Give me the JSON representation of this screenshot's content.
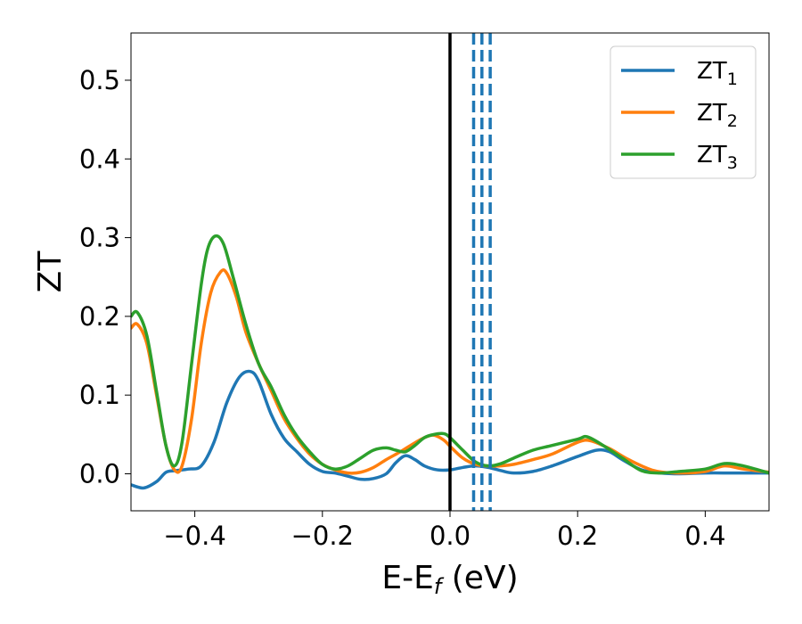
{
  "chart_data": {
    "type": "line",
    "title": "",
    "xlabel": "E-E",
    "xlabel_subscript": "f",
    "xlabel_unit": " (eV)",
    "ylabel": "ZT",
    "xlim": [
      -0.5,
      0.5
    ],
    "ylim": [
      -0.047,
      0.56
    ],
    "xticks": [
      -0.4,
      -0.2,
      0.0,
      0.2,
      0.4
    ],
    "xtick_labels": [
      "−0.4",
      "−0.2",
      "0.0",
      "0.2",
      "0.4"
    ],
    "yticks": [
      0.0,
      0.1,
      0.2,
      0.3,
      0.4,
      0.5
    ],
    "ytick_labels": [
      "0.0",
      "0.1",
      "0.2",
      "0.3",
      "0.4",
      "0.5"
    ],
    "grid": false,
    "legend_position": "top-right",
    "series": [
      {
        "name": "ZT",
        "name_subscript": "1",
        "color": "#1f77b4",
        "x": [
          -0.5,
          -0.48,
          -0.46,
          -0.445,
          -0.43,
          -0.41,
          -0.39,
          -0.37,
          -0.35,
          -0.33,
          -0.313,
          -0.3,
          -0.28,
          -0.26,
          -0.24,
          -0.22,
          -0.2,
          -0.18,
          -0.16,
          -0.14,
          -0.12,
          -0.1,
          -0.085,
          -0.07,
          -0.055,
          -0.04,
          -0.02,
          0.0,
          0.02,
          0.04,
          0.06,
          0.08,
          0.1,
          0.13,
          0.16,
          0.2,
          0.23,
          0.25,
          0.27,
          0.3,
          0.33,
          0.36,
          0.4,
          0.44,
          0.47,
          0.5
        ],
        "y": [
          -0.014,
          -0.018,
          -0.01,
          0.002,
          0.004,
          0.006,
          0.01,
          0.04,
          0.09,
          0.123,
          0.13,
          0.118,
          0.075,
          0.045,
          0.028,
          0.012,
          0.003,
          0.001,
          -0.003,
          -0.007,
          -0.006,
          0.0,
          0.014,
          0.023,
          0.018,
          0.01,
          0.005,
          0.005,
          0.008,
          0.01,
          0.008,
          0.004,
          0.001,
          0.003,
          0.01,
          0.022,
          0.03,
          0.028,
          0.018,
          0.005,
          0.001,
          0.0,
          0.001,
          0.001,
          0.001,
          0.001
        ]
      },
      {
        "name": "ZT",
        "name_subscript": "2",
        "color": "#ff7f0e",
        "x": [
          -0.5,
          -0.49,
          -0.475,
          -0.46,
          -0.445,
          -0.432,
          -0.42,
          -0.405,
          -0.39,
          -0.375,
          -0.36,
          -0.35,
          -0.335,
          -0.32,
          -0.3,
          -0.28,
          -0.26,
          -0.24,
          -0.22,
          -0.2,
          -0.18,
          -0.16,
          -0.14,
          -0.12,
          -0.1,
          -0.08,
          -0.06,
          -0.04,
          -0.025,
          -0.01,
          0.0,
          0.02,
          0.04,
          0.06,
          0.08,
          0.1,
          0.13,
          0.16,
          0.2,
          0.22,
          0.25,
          0.28,
          0.32,
          0.36,
          0.4,
          0.43,
          0.46,
          0.5
        ],
        "y": [
          0.185,
          0.19,
          0.165,
          0.1,
          0.035,
          0.005,
          0.01,
          0.07,
          0.165,
          0.23,
          0.256,
          0.255,
          0.225,
          0.18,
          0.14,
          0.105,
          0.07,
          0.045,
          0.025,
          0.012,
          0.005,
          0.001,
          0.002,
          0.008,
          0.018,
          0.027,
          0.037,
          0.046,
          0.049,
          0.043,
          0.035,
          0.02,
          0.012,
          0.01,
          0.01,
          0.012,
          0.018,
          0.025,
          0.04,
          0.042,
          0.032,
          0.018,
          0.004,
          0.001,
          0.003,
          0.01,
          0.006,
          0.002
        ]
      },
      {
        "name": "ZT",
        "name_subscript": "3",
        "color": "#2ca02c",
        "x": [
          -0.5,
          -0.49,
          -0.475,
          -0.46,
          -0.445,
          -0.432,
          -0.42,
          -0.405,
          -0.39,
          -0.38,
          -0.368,
          -0.355,
          -0.34,
          -0.32,
          -0.3,
          -0.28,
          -0.26,
          -0.24,
          -0.22,
          -0.2,
          -0.18,
          -0.16,
          -0.14,
          -0.12,
          -0.1,
          -0.085,
          -0.07,
          -0.055,
          -0.04,
          -0.025,
          -0.01,
          0.0,
          0.02,
          0.04,
          0.06,
          0.08,
          0.1,
          0.13,
          0.16,
          0.2,
          0.215,
          0.24,
          0.27,
          0.3,
          0.33,
          0.36,
          0.4,
          0.43,
          0.46,
          0.5
        ],
        "y": [
          0.2,
          0.205,
          0.175,
          0.105,
          0.035,
          0.01,
          0.04,
          0.14,
          0.24,
          0.285,
          0.302,
          0.292,
          0.25,
          0.19,
          0.14,
          0.11,
          0.075,
          0.048,
          0.028,
          0.012,
          0.006,
          0.01,
          0.02,
          0.03,
          0.033,
          0.03,
          0.028,
          0.036,
          0.046,
          0.05,
          0.051,
          0.046,
          0.03,
          0.015,
          0.01,
          0.013,
          0.02,
          0.03,
          0.036,
          0.044,
          0.047,
          0.036,
          0.02,
          0.004,
          0.001,
          0.003,
          0.006,
          0.013,
          0.01,
          0.001
        ]
      }
    ],
    "reference_lines": [
      {
        "x": 0.0,
        "style": "solid",
        "color": "#000000"
      },
      {
        "x": 0.037,
        "style": "dashed",
        "color": "#1f77b4"
      },
      {
        "x": 0.05,
        "style": "dashed",
        "color": "#1f77b4"
      },
      {
        "x": 0.063,
        "style": "dashed",
        "color": "#1f77b4"
      }
    ]
  }
}
